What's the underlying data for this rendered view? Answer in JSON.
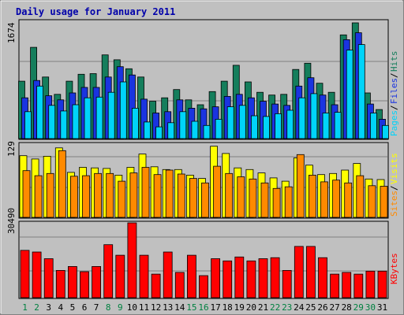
{
  "chart_data": {
    "type": "bar",
    "title": "Daily usage for January 2011",
    "categories": [
      "1",
      "2",
      "3",
      "4",
      "5",
      "6",
      "7",
      "8",
      "9",
      "10",
      "11",
      "12",
      "13",
      "14",
      "15",
      "16",
      "17",
      "18",
      "19",
      "20",
      "21",
      "22",
      "23",
      "24",
      "25",
      "26",
      "27",
      "28",
      "29",
      "30",
      "31"
    ],
    "weekend_days": [
      "1",
      "2",
      "8",
      "9",
      "15",
      "16",
      "22",
      "23",
      "29",
      "30"
    ],
    "panels": [
      {
        "id": "pfh",
        "tick_label": "1674",
        "max": 1674,
        "series": [
          {
            "name": "Hits",
            "color": "#157e5c",
            "values": [
              830,
              1320,
              890,
              640,
              830,
              930,
              940,
              1210,
              1140,
              1010,
              890,
              540,
              590,
              710,
              560,
              490,
              680,
              830,
              1060,
              820,
              670,
              630,
              640,
              1000,
              1090,
              800,
              670,
              1500,
              1674,
              660,
              420
            ]
          },
          {
            "name": "Files",
            "color": "#1a34e0",
            "values": [
              590,
              840,
              620,
              560,
              660,
              740,
              740,
              890,
              1040,
              920,
              570,
              370,
              390,
              560,
              440,
              430,
              460,
              610,
              640,
              590,
              540,
              500,
              480,
              760,
              880,
              630,
              490,
              1430,
              1530,
              500,
              280
            ]
          },
          {
            "name": "Pages",
            "color": "#00d4f9",
            "values": [
              390,
              760,
              480,
              400,
              490,
              590,
              600,
              670,
              820,
              440,
              240,
              170,
              230,
              390,
              250,
              190,
              280,
              460,
              480,
              330,
              320,
              360,
              410,
              590,
              650,
              370,
              380,
              1280,
              1360,
              370,
              190
            ]
          }
        ],
        "legend": [
          "Pages",
          "Files",
          "Hits"
        ],
        "legend_colors": [
          "#00d4f9",
          "#1a34e0",
          "#157e5c"
        ]
      },
      {
        "id": "sv",
        "tick_label": "129",
        "max": 129,
        "series": [
          {
            "name": "Visits",
            "color": "#ffff00",
            "values": [
              111,
              105,
              110,
              125,
              81,
              90,
              89,
              88,
              76,
              90,
              114,
              91,
              86,
              86,
              76,
              70,
              128,
              115,
              89,
              86,
              80,
              71,
              65,
              107,
              94,
              77,
              79,
              85,
              97,
              69,
              68
            ]
          },
          {
            "name": "Sites",
            "color": "#ff8a00",
            "values": [
              84,
              75,
              79,
              120,
              74,
              75,
              79,
              79,
              65,
              80,
              90,
              77,
              85,
              78,
              70,
              62,
              92,
              79,
              73,
              69,
              62,
              52,
              55,
              113,
              76,
              64,
              67,
              62,
              75,
              57,
              56
            ]
          }
        ],
        "legend": [
          "Sites",
          "Visits"
        ],
        "legend_colors": [
          "#ff8a00",
          "#ffff00"
        ]
      },
      {
        "id": "kb",
        "tick_label": "30490",
        "max": 30490,
        "series": [
          {
            "name": "KBytes",
            "color": "#ff0000",
            "values": [
              19300,
              18600,
              15900,
              11100,
              12700,
              10600,
              12700,
              21600,
              17300,
              30490,
              17300,
              9600,
              18600,
              10300,
              17300,
              9000,
              15900,
              15000,
              16600,
              15000,
              15900,
              16300,
              11100,
              20900,
              20900,
              16300,
              9600,
              10300,
              9600,
              10800,
              10800
            ]
          }
        ],
        "legend": [
          "KBytes"
        ],
        "legend_colors": [
          "#ff0000"
        ]
      }
    ]
  }
}
